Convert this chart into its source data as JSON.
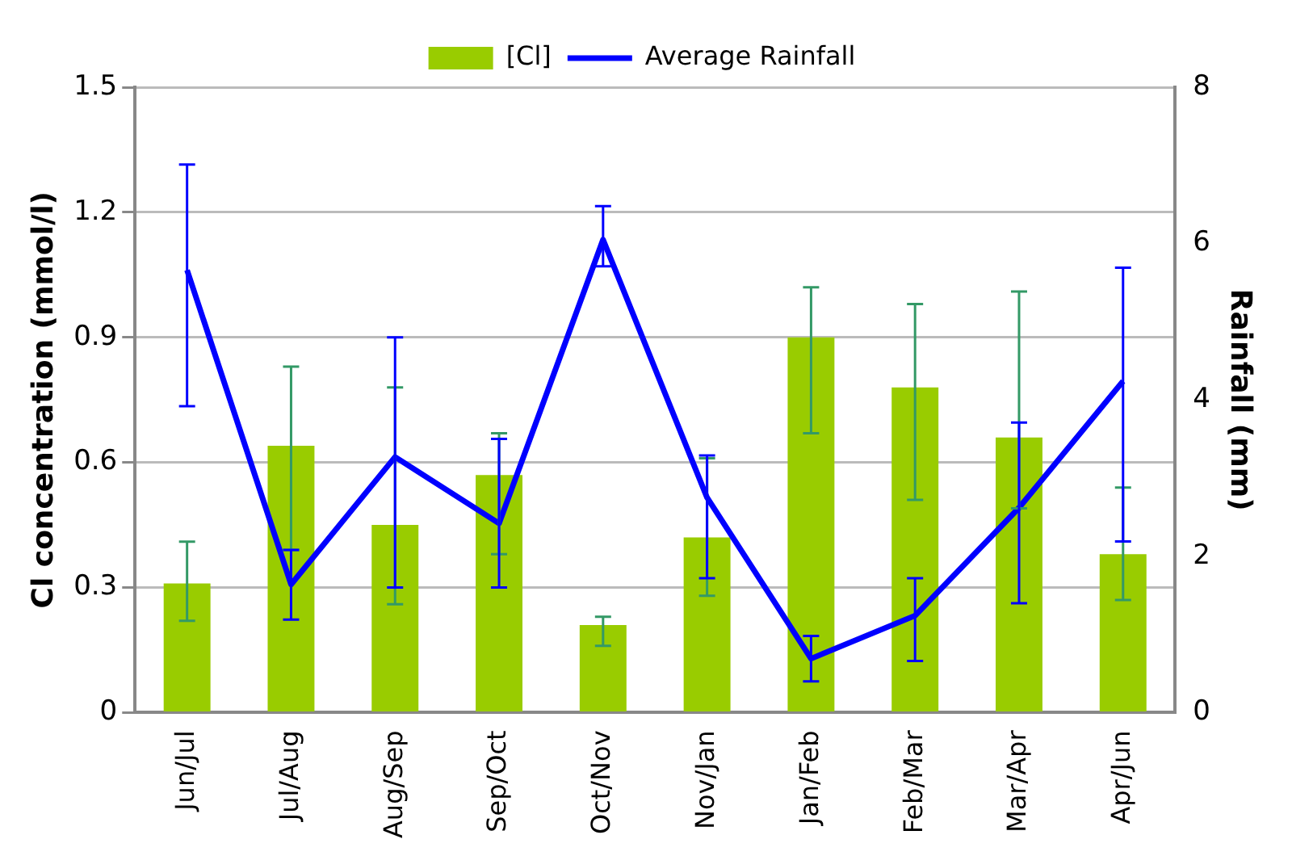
{
  "chart_data": {
    "type": "bar",
    "ylabel": "Cl concentration (mmol/l)",
    "y2label": "Rainfall (mm)",
    "categories": [
      "Jun/Jul",
      "Jul/Aug",
      "Aug/Sep",
      "Sep/Oct",
      "Oct/Nov",
      "Nov/Jan",
      "Jan/Feb",
      "Feb/Mar",
      "Mar/Apr",
      "Apr/Jun"
    ],
    "series": [
      {
        "name": "[Cl]",
        "color": "#99cc00",
        "values": [
          0.31,
          0.64,
          0.45,
          0.57,
          0.21,
          0.42,
          0.9,
          0.78,
          0.66,
          0.38
        ],
        "errors": [
          [
            0.22,
            0.41
          ],
          [
            0.39,
            0.83
          ],
          [
            0.26,
            0.78
          ],
          [
            0.38,
            0.67
          ],
          [
            0.16,
            0.23
          ],
          [
            0.28,
            0.61
          ],
          [
            0.67,
            1.02
          ],
          [
            0.51,
            0.98
          ],
          [
            0.49,
            1.01
          ],
          [
            0.27,
            0.54
          ]
        ]
      },
      {
        "name": "Average Rainfall",
        "type": "line",
        "axis": "y2",
        "color": "#0000ff",
        "values": [
          5.66,
          1.64,
          3.27,
          2.42,
          6.05,
          2.75,
          0.69,
          1.24,
          2.62,
          4.24
        ],
        "errors": [
          [
            3.92,
            7.01
          ],
          [
            1.19,
            2.08
          ],
          [
            1.6,
            4.8
          ],
          [
            1.6,
            3.5
          ],
          [
            5.71,
            6.48
          ],
          [
            1.72,
            3.29
          ],
          [
            0.4,
            0.98
          ],
          [
            0.66,
            1.72
          ],
          [
            1.4,
            3.71
          ],
          [
            2.19,
            5.69
          ]
        ]
      }
    ],
    "ylim": [
      0,
      1.5
    ],
    "yticks": [
      0,
      0.3,
      0.6,
      0.9,
      1.2,
      1.5
    ],
    "y2lim": [
      0,
      8
    ],
    "y2ticks": [
      0,
      2,
      4,
      6,
      8
    ],
    "grid": "y",
    "legend": "top",
    "marker": "none"
  }
}
